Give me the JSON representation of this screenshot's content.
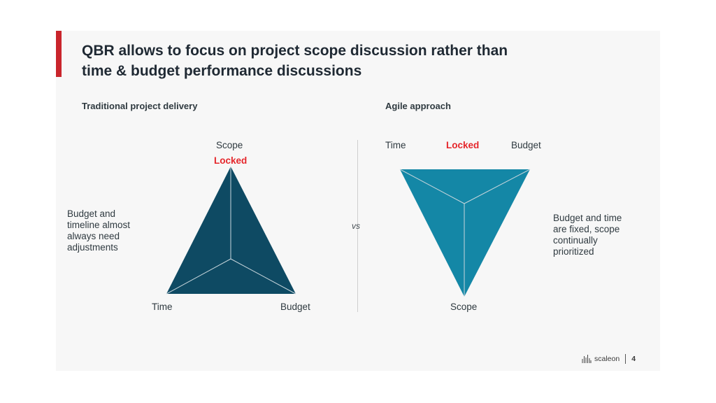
{
  "slide": {
    "title_line1": "QBR allows to focus on project scope discussion rather than",
    "title_line2": "time & budget performance discussions",
    "vs_label": "vs",
    "colors": {
      "accent": "#c9252c",
      "locked_text": "#e5262b",
      "traditional_triangle": "#0e4a63",
      "agile_triangle": "#1487a6",
      "triangle_lines": "#c8d6dc"
    }
  },
  "traditional": {
    "heading": "Traditional project delivery",
    "top_label": "Scope",
    "locked_label": "Locked",
    "left_label": "Time",
    "right_label": "Budget",
    "note_lines": [
      "Budget and",
      "timeline almost",
      "always need",
      "adjustments"
    ]
  },
  "agile": {
    "heading": "Agile approach",
    "left_label": "Time",
    "locked_label": "Locked",
    "right_label": "Budget",
    "bottom_label": "Scope",
    "note_lines": [
      "Budget and time",
      "are fixed, scope",
      "continually",
      "prioritized"
    ]
  },
  "footer": {
    "logo_icon": "scaleon-logo-icon",
    "brand": "scaleon",
    "page_number": "4"
  }
}
